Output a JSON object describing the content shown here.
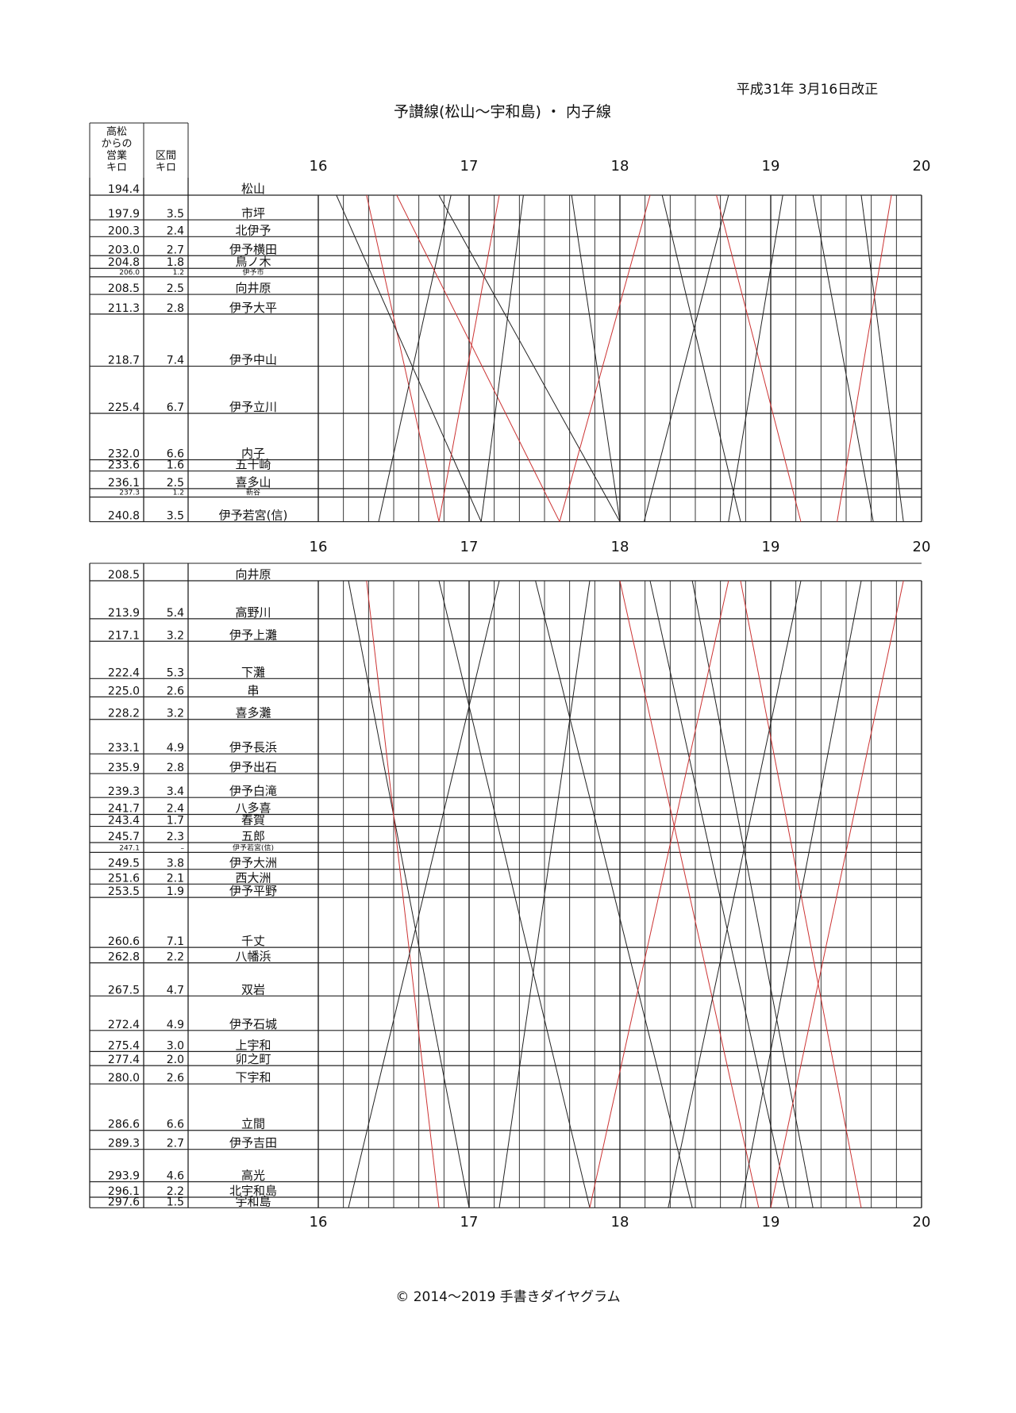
{
  "header": {
    "title": "予讃線(松山～宇和島) ・ 内子線",
    "revision": "平成31年 3月16日改正"
  },
  "columns": {
    "km": [
      "高松",
      "からの",
      "営業",
      "キロ"
    ],
    "section": [
      "区間",
      "キロ"
    ]
  },
  "hours": [
    16,
    17,
    18,
    19,
    20
  ],
  "sections": [
    {
      "stations": [
        {
          "km": "194.4",
          "name": "松山"
        },
        {
          "km": "197.9",
          "section": "3.5",
          "name": "市坪"
        },
        {
          "km": "200.3",
          "section": "2.4",
          "name": "北伊予"
        },
        {
          "km": "203.0",
          "section": "2.7",
          "name": "伊予横田"
        },
        {
          "km": "204.8",
          "section": "1.8",
          "name": "鳥ノ木"
        },
        {
          "km": "206.0",
          "section": "1.2",
          "name": "伊予市"
        },
        {
          "km": "208.5",
          "section": "2.5",
          "name": "向井原"
        },
        {
          "km": "211.3",
          "section": "2.8",
          "name": "伊予大平"
        },
        {
          "km": "218.7",
          "section": "7.4",
          "name": "伊予中山"
        },
        {
          "km": "225.4",
          "section": "6.7",
          "name": "伊予立川"
        },
        {
          "km": "232.0",
          "section": "6.6",
          "name": "内子"
        },
        {
          "km": "233.6",
          "section": "1.6",
          "name": "五十崎"
        },
        {
          "km": "236.1",
          "section": "2.5",
          "name": "喜多山"
        },
        {
          "km": "237.3",
          "section": "1.2",
          "name": "新谷"
        },
        {
          "km": "240.8",
          "section": "3.5",
          "name": "伊予若宮(信)"
        }
      ]
    },
    {
      "stations": [
        {
          "km": "208.5",
          "name": "向井原"
        },
        {
          "km": "213.9",
          "section": "5.4",
          "name": "高野川"
        },
        {
          "km": "217.1",
          "section": "3.2",
          "name": "伊予上灘"
        },
        {
          "km": "222.4",
          "section": "5.3",
          "name": "下灘"
        },
        {
          "km": "225.0",
          "section": "2.6",
          "name": "串"
        },
        {
          "km": "228.2",
          "section": "3.2",
          "name": "喜多灘"
        },
        {
          "km": "233.1",
          "section": "4.9",
          "name": "伊予長浜"
        },
        {
          "km": "235.9",
          "section": "2.8",
          "name": "伊予出石"
        },
        {
          "km": "239.3",
          "section": "3.4",
          "name": "伊予白滝"
        },
        {
          "km": "241.7",
          "section": "2.4",
          "name": "八多喜"
        },
        {
          "km": "243.4",
          "section": "1.7",
          "name": "春賀"
        },
        {
          "km": "245.7",
          "section": "2.3",
          "name": "五郎"
        },
        {
          "km": "247.1",
          "section": "–",
          "name": "伊予若宮(信)"
        },
        {
          "km": "249.5",
          "section": "3.8",
          "name": "伊予大洲"
        },
        {
          "km": "251.6",
          "section": "2.1",
          "name": "西大洲"
        },
        {
          "km": "253.5",
          "section": "1.9",
          "name": "伊予平野"
        },
        {
          "km": "260.6",
          "section": "7.1",
          "name": "千丈"
        },
        {
          "km": "262.8",
          "section": "2.2",
          "name": "八幡浜"
        },
        {
          "km": "267.5",
          "section": "4.7",
          "name": "双岩"
        },
        {
          "km": "272.4",
          "section": "4.9",
          "name": "伊予石城"
        },
        {
          "km": "275.4",
          "section": "3.0",
          "name": "上宇和"
        },
        {
          "km": "277.4",
          "section": "2.0",
          "name": "卯之町"
        },
        {
          "km": "280.0",
          "section": "2.6",
          "name": "下宇和"
        },
        {
          "km": "286.6",
          "section": "6.6",
          "name": "立間"
        },
        {
          "km": "289.3",
          "section": "2.7",
          "name": "伊予吉田"
        },
        {
          "km": "293.9",
          "section": "4.6",
          "name": "高光"
        },
        {
          "km": "296.1",
          "section": "2.2",
          "name": "北宇和島"
        },
        {
          "km": "297.6",
          "section": "1.5",
          "name": "宇和島"
        }
      ]
    }
  ],
  "footer": "© 2014～2019 手書きダイヤグラム"
}
